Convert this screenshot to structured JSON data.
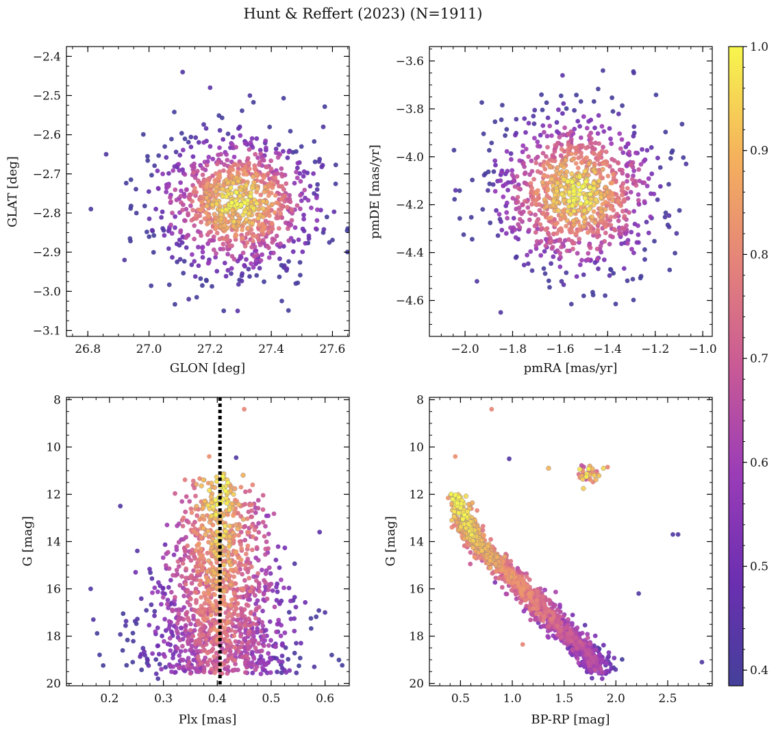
{
  "figure_title": "Hunt & Reffert (2023) (N=1911)",
  "chart_data": [
    {
      "type": "scatter",
      "panel": "top-left",
      "xlabel": "GLON [deg]",
      "ylabel": "GLAT [deg]",
      "xlim": [
        26.73,
        27.655
      ],
      "ylim": [
        -3.115,
        -2.375
      ],
      "y_inverted": false,
      "xticks": [
        26.8,
        27.0,
        27.2,
        27.4,
        27.6
      ],
      "xtick_labels": [
        "26.8",
        "27.0",
        "27.2",
        "27.4",
        "27.6"
      ],
      "yticks": [
        -3.1,
        -3.0,
        -2.9,
        -2.8,
        -2.7,
        -2.6,
        -2.5,
        -2.4
      ],
      "ytick_labels": [
        "−3.1",
        "−3.0",
        "−2.9",
        "−2.8",
        "−2.7",
        "−2.6",
        "−2.5",
        "−2.4"
      ],
      "sample_points": [
        {
          "x": 27.11,
          "y": -2.44,
          "p": 0.42
        },
        {
          "x": 26.81,
          "y": -2.79,
          "p": 0.4
        },
        {
          "x": 27.29,
          "y": -3.05,
          "p": 0.45
        },
        {
          "x": 27.57,
          "y": -2.58,
          "p": 0.42
        },
        {
          "x": 27.57,
          "y": -2.85,
          "p": 0.4
        },
        {
          "x": 26.92,
          "y": -2.92,
          "p": 0.42
        },
        {
          "x": 27.2,
          "y": -2.48,
          "p": 0.45
        },
        {
          "x": 27.33,
          "y": -2.5,
          "p": 0.42
        },
        {
          "x": 27.48,
          "y": -2.98,
          "p": 0.4
        },
        {
          "x": 26.86,
          "y": -2.65,
          "p": 0.42
        },
        {
          "x": 27.13,
          "y": -3.02,
          "p": 0.42
        },
        {
          "x": 27.55,
          "y": -2.74,
          "p": 0.44
        }
      ],
      "distribution": {
        "x_center": 27.29,
        "y_center": -2.775,
        "x_spread": 0.13,
        "y_spread": 0.085,
        "n_points": 1000
      }
    },
    {
      "type": "scatter",
      "panel": "top-right",
      "xlabel": "pmRA [mas/yr]",
      "ylabel": "pmDE [mas/yr]",
      "xlim": [
        -2.15,
        -0.96
      ],
      "ylim": [
        -4.75,
        -3.54
      ],
      "y_inverted": false,
      "xticks": [
        -2.0,
        -1.8,
        -1.6,
        -1.4,
        -1.2,
        -1.0
      ],
      "xtick_labels": [
        "−2.0",
        "−1.8",
        "−1.6",
        "−1.4",
        "−1.2",
        "−1.0"
      ],
      "yticks": [
        -4.6,
        -4.4,
        -4.2,
        -4.0,
        -3.8,
        -3.6
      ],
      "ytick_labels": [
        "−4.6",
        "−4.4",
        "−4.2",
        "−4.0",
        "−3.8",
        "−3.6"
      ],
      "sample_points": [
        {
          "x": -1.85,
          "y": -4.65,
          "p": 0.42
        },
        {
          "x": -2.04,
          "y": -4.14,
          "p": 0.45
        },
        {
          "x": -1.07,
          "y": -4.03,
          "p": 0.42
        },
        {
          "x": -1.42,
          "y": -3.64,
          "p": 0.4
        },
        {
          "x": -1.29,
          "y": -3.65,
          "p": 0.42
        },
        {
          "x": -1.11,
          "y": -4.32,
          "p": 0.42
        },
        {
          "x": -1.59,
          "y": -3.66,
          "p": 0.45
        },
        {
          "x": -1.95,
          "y": -4.52,
          "p": 0.42
        }
      ],
      "distribution": {
        "x_center": -1.53,
        "y_center": -4.15,
        "x_spread": 0.17,
        "y_spread": 0.16,
        "n_points": 1000
      }
    },
    {
      "type": "scatter",
      "panel": "bottom-left",
      "xlabel": "Plx [mas]",
      "ylabel": "G [mag]",
      "xlim": [
        0.12,
        0.645
      ],
      "ylim": [
        7.9,
        20.1
      ],
      "y_inverted": true,
      "xticks": [
        0.2,
        0.3,
        0.4,
        0.5,
        0.6
      ],
      "xtick_labels": [
        "0.2",
        "0.3",
        "0.4",
        "0.5",
        "0.6"
      ],
      "yticks": [
        8,
        10,
        12,
        14,
        16,
        18,
        20
      ],
      "ytick_labels": [
        "8",
        "10",
        "12",
        "14",
        "16",
        "18",
        "20"
      ],
      "reference_line": {
        "x": 0.405,
        "style": "dotted",
        "color": "#000000"
      },
      "sample_points": [
        {
          "x": 0.45,
          "y": 8.4,
          "p": 0.8
        },
        {
          "x": 0.385,
          "y": 10.4,
          "p": 0.82
        },
        {
          "x": 0.435,
          "y": 10.45,
          "p": 0.42
        },
        {
          "x": 0.165,
          "y": 16.0,
          "p": 0.42
        },
        {
          "x": 0.22,
          "y": 12.5,
          "p": 0.42
        },
        {
          "x": 0.59,
          "y": 13.6,
          "p": 0.45
        },
        {
          "x": 0.6,
          "y": 17.0,
          "p": 0.42
        },
        {
          "x": 0.17,
          "y": 17.3,
          "p": 0.42
        },
        {
          "x": 0.58,
          "y": 19.3,
          "p": 0.42
        },
        {
          "x": 0.29,
          "y": 19.8,
          "p": 0.42
        }
      ],
      "distribution": {
        "x_center": 0.405,
        "x_spread": 0.075,
        "g_bright": 11,
        "g_faint": 19.6,
        "n_points": 1350
      }
    },
    {
      "type": "scatter",
      "panel": "bottom-right",
      "xlabel": "BP-RP [mag]",
      "ylabel": "G [mag]",
      "xlim": [
        0.2,
        2.93
      ],
      "ylim": [
        7.9,
        20.1
      ],
      "y_inverted": true,
      "xticks": [
        0.5,
        1.0,
        1.5,
        2.0,
        2.5
      ],
      "xtick_labels": [
        "0.5",
        "1.0",
        "1.5",
        "2.0",
        "2.5"
      ],
      "yticks": [
        8,
        10,
        12,
        14,
        16,
        18,
        20
      ],
      "ytick_labels": [
        "8",
        "10",
        "12",
        "14",
        "16",
        "18",
        "20"
      ],
      "sample_points": [
        {
          "x": 0.8,
          "y": 8.4,
          "p": 0.8
        },
        {
          "x": 0.45,
          "y": 10.4,
          "p": 0.82
        },
        {
          "x": 0.97,
          "y": 10.5,
          "p": 0.42
        },
        {
          "x": 2.83,
          "y": 19.1,
          "p": 0.42
        },
        {
          "x": 2.55,
          "y": 13.7,
          "p": 0.42
        },
        {
          "x": 2.6,
          "y": 13.7,
          "p": 0.42
        },
        {
          "x": 1.1,
          "y": 18.35,
          "p": 0.8
        },
        {
          "x": 2.22,
          "y": 16.2,
          "p": 0.42
        },
        {
          "x": 1.35,
          "y": 10.9,
          "p": 0.9
        },
        {
          "x": 1.88,
          "y": 10.9,
          "p": 0.95
        },
        {
          "x": 1.92,
          "y": 10.85,
          "p": 0.8
        }
      ],
      "sequence": [
        [
          0.45,
          12.0
        ],
        [
          0.55,
          13.2
        ],
        [
          0.65,
          14.0
        ],
        [
          0.85,
          14.9
        ],
        [
          1.1,
          15.9
        ],
        [
          1.3,
          16.9
        ],
        [
          1.5,
          17.8
        ],
        [
          1.7,
          18.6
        ],
        [
          1.85,
          19.4
        ]
      ],
      "red_clump": {
        "x_center": 1.72,
        "y_center": 11.2,
        "n_points": 35
      },
      "distribution": {
        "n_points": 1300
      }
    }
  ],
  "colorbar": {
    "cmap": "plasma",
    "vmin": 0.385,
    "vmax": 1.0,
    "ticks": [
      0.4,
      0.5,
      0.6,
      0.7,
      0.8,
      0.9,
      1.0
    ],
    "tick_labels": [
      "0.4",
      "0.5",
      "0.6",
      "0.7",
      "0.8",
      "0.9",
      "1.0"
    ]
  }
}
